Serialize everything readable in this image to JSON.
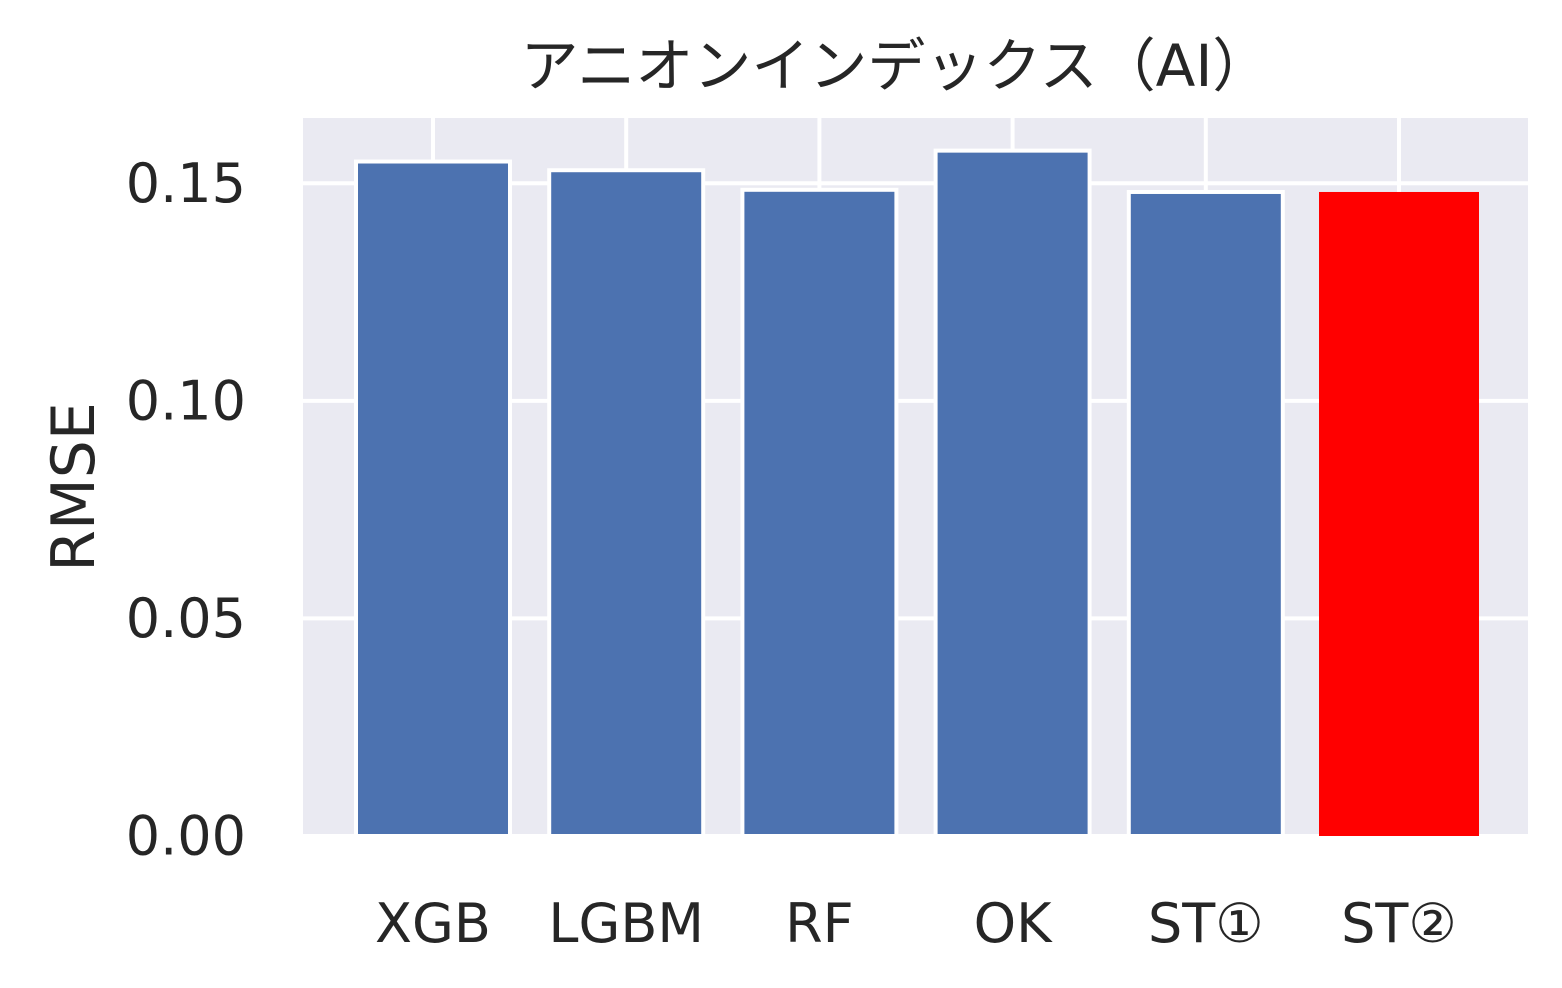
{
  "chart_data": {
    "type": "bar",
    "title": "アニオンインデックス（AI）",
    "xlabel": "",
    "ylabel": "RMSE",
    "categories": [
      "XGB",
      "LGBM",
      "RF",
      "OK",
      "ST①",
      "ST②"
    ],
    "values": [
      0.155,
      0.153,
      0.1485,
      0.1575,
      0.148,
      0.148
    ],
    "ylim": [
      0,
      0.165
    ],
    "yticks": [
      "0.00",
      "0.05",
      "0.10",
      "0.15"
    ],
    "ytick_values": [
      0,
      0.05,
      0.1,
      0.15
    ],
    "grid": true,
    "colors": {
      "default": "#4c72b0",
      "highlight": "#ff0000",
      "plot_background": "#eaeaf2",
      "grid": "#ffffff",
      "text": "#262626"
    },
    "highlight_index": 5
  }
}
